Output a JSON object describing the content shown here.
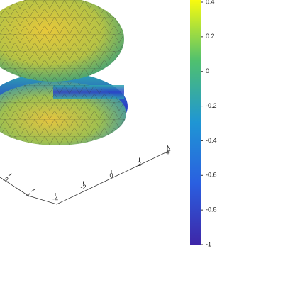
{
  "chart_data": {
    "type": "surface3d",
    "xlim": [
      -4,
      4
    ],
    "xticks": [
      -4,
      -2,
      0,
      2,
      4
    ],
    "ylim": [
      -4,
      4
    ],
    "yticks": [
      -4,
      -2
    ],
    "colorbar": {
      "clim": [
        -1,
        0.4
      ],
      "ticks": [
        0.4,
        0.2,
        0,
        -0.2,
        -0.4,
        -0.6,
        -0.8,
        -1
      ],
      "colors": [
        "#f9fb0e",
        "#4fc06f",
        "#1f96d4",
        "#2a5fe0",
        "#3e26a8"
      ]
    }
  }
}
